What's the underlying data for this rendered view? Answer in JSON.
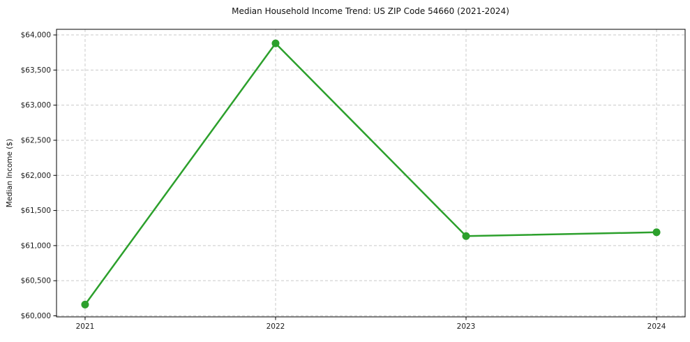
{
  "figure": {
    "title": "Median Household Income Trend: US ZIP Code 54660 (2021-2024)",
    "ylabel": "Median Income ($)"
  },
  "chart_data": {
    "type": "line",
    "title": "Median Household Income Trend: US ZIP Code 54660 (2021-2024)",
    "xlabel": "",
    "ylabel": "Median Income ($)",
    "categories": [
      "2021",
      "2022",
      "2023",
      "2024"
    ],
    "x": [
      2021,
      2022,
      2023,
      2024
    ],
    "series": [
      {
        "name": "Median Household Income",
        "values": [
          60160,
          63880,
          61135,
          61190
        ]
      }
    ],
    "y_ticks": [
      {
        "value": 60000,
        "label": "$60,000"
      },
      {
        "value": 60500,
        "label": "$60,500"
      },
      {
        "value": 61000,
        "label": "$61,000"
      },
      {
        "value": 61500,
        "label": "$61,500"
      },
      {
        "value": 62000,
        "label": "$62,000"
      },
      {
        "value": 62500,
        "label": "$62,500"
      },
      {
        "value": 63000,
        "label": "$63,000"
      },
      {
        "value": 63500,
        "label": "$63,500"
      },
      {
        "value": 64000,
        "label": "$64,000"
      }
    ],
    "xlim": [
      2020.85,
      2024.15
    ],
    "ylim": [
      59985,
      64080
    ],
    "grid": true,
    "grid_style": "dashed",
    "legend_position": "none",
    "line_color": "#2ca02c",
    "marker": "circle",
    "marker_size": 5.5,
    "line_width": 2.5,
    "grid_color": "#c9c9c9",
    "spine_color": "#000000",
    "background": "#ffffff"
  }
}
